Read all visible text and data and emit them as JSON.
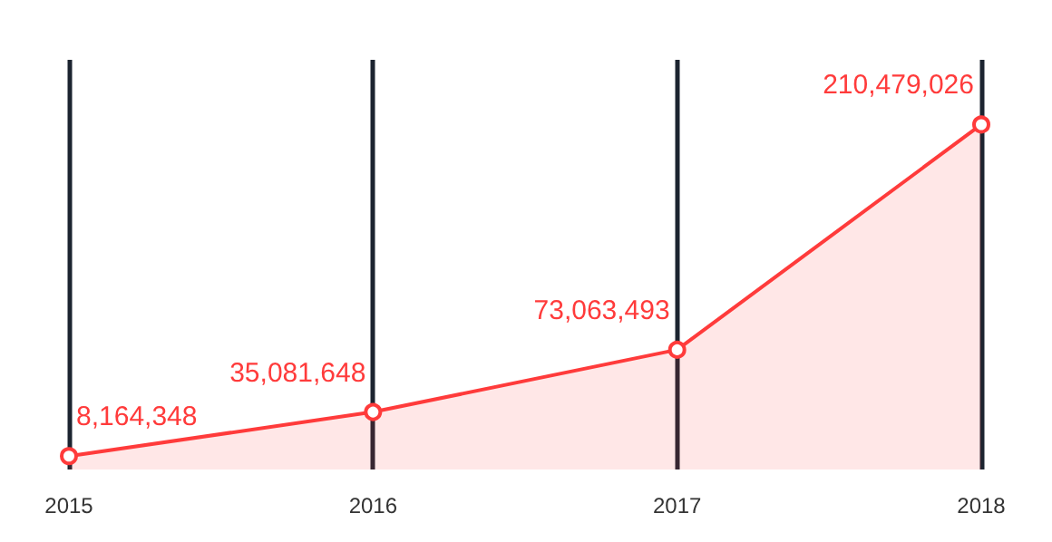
{
  "chart_data": {
    "type": "area",
    "categories": [
      "2015",
      "2016",
      "2017",
      "2018"
    ],
    "series": [
      {
        "color": "#ff3b3b",
        "values": [
          8164348,
          35081648,
          73063493,
          210479026
        ],
        "value_labels": [
          "8,164,348",
          "35,081,648",
          "73,063,493",
          "210,479,026"
        ]
      }
    ],
    "grid": "x",
    "marker": "circle"
  }
}
